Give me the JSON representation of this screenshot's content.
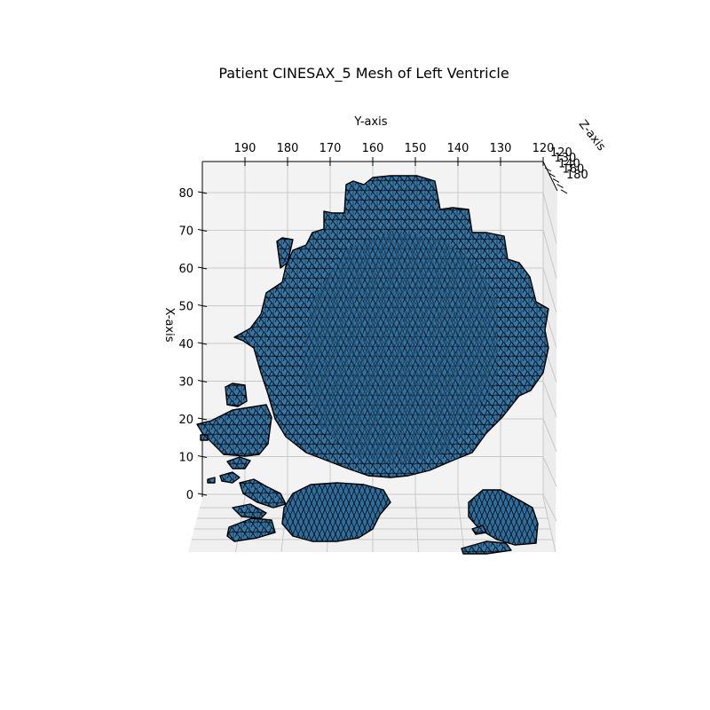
{
  "chart_data": {
    "type": "surface3d",
    "title": "Patient CINESAX_5 Mesh of Left Ventricle",
    "xlabel": "X-axis",
    "ylabel": "Y-axis",
    "zlabel": "Z-axis",
    "x_ticks": [
      0,
      10,
      20,
      30,
      40,
      50,
      60,
      70,
      80
    ],
    "y_ticks": [
      190,
      180,
      170,
      160,
      150,
      140,
      130,
      120
    ],
    "z_ticks": [
      120,
      130,
      140,
      160,
      180
    ],
    "xlim": [
      0,
      88
    ],
    "ylim": [
      200,
      120
    ],
    "grid": true,
    "colors": {
      "face": "#3a78a8",
      "edge": "#0a0a0a",
      "pane": "#f2f2f2",
      "grid": "#c8c8c8"
    }
  }
}
